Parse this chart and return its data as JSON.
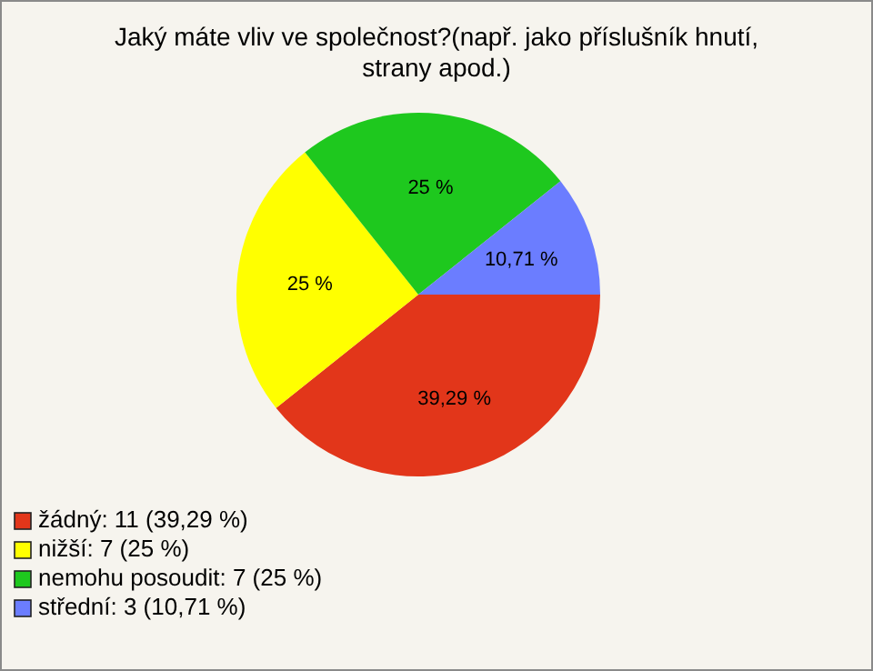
{
  "chart_data": {
    "type": "pie",
    "title": "Jaký máte vliv ve společnost?(např. jako příslušník hnutí, strany apod.)",
    "categories": [
      "žádný: 11 (39,29 %)",
      "nižší: 7 (25 %)",
      "nemohu posoudit: 7 (25 %)",
      "střední: 3 (10,71 %)"
    ],
    "values": [
      39.29,
      25,
      25,
      10.71
    ],
    "value_labels": [
      "39,29 %",
      "25 %",
      "25 %",
      "10,71 %"
    ],
    "colors": [
      "#e2361a",
      "#ffff00",
      "#1ec81e",
      "#6b7dff"
    ],
    "legend": "bottom left"
  }
}
